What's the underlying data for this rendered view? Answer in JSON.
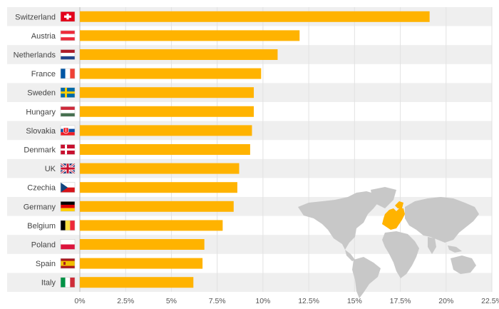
{
  "chart_data": {
    "type": "bar",
    "orientation": "horizontal",
    "categories": [
      "Switzerland",
      "Austria",
      "Netherlands",
      "France",
      "Sweden",
      "Hungary",
      "Slovakia",
      "Denmark",
      "UK",
      "Czechia",
      "Germany",
      "Belgium",
      "Poland",
      "Spain",
      "Italy"
    ],
    "values": [
      19.1,
      12.0,
      10.8,
      9.9,
      9.5,
      9.5,
      9.4,
      9.3,
      8.7,
      8.6,
      8.4,
      7.8,
      6.8,
      6.7,
      6.2
    ],
    "xlim": [
      0,
      22.5
    ],
    "ticks": [
      "0%",
      "2.5%",
      "5%",
      "7.5%",
      "10%",
      "12.5%",
      "15%",
      "17.5%",
      "20%",
      "22.5%"
    ],
    "grid": true,
    "bar_color": "#FFB300",
    "row_band_color": "#EFEFEF",
    "flags": [
      "flag-switzerland-icon",
      "flag-austria-icon",
      "flag-netherlands-icon",
      "flag-france-icon",
      "flag-sweden-icon",
      "flag-hungary-icon",
      "flag-slovakia-icon",
      "flag-denmark-icon",
      "flag-uk-icon",
      "flag-czechia-icon",
      "flag-germany-icon",
      "flag-belgium-icon",
      "flag-poland-icon",
      "flag-spain-icon",
      "flag-italy-icon"
    ],
    "decoration": "world-map-europe-highlighted-icon"
  }
}
